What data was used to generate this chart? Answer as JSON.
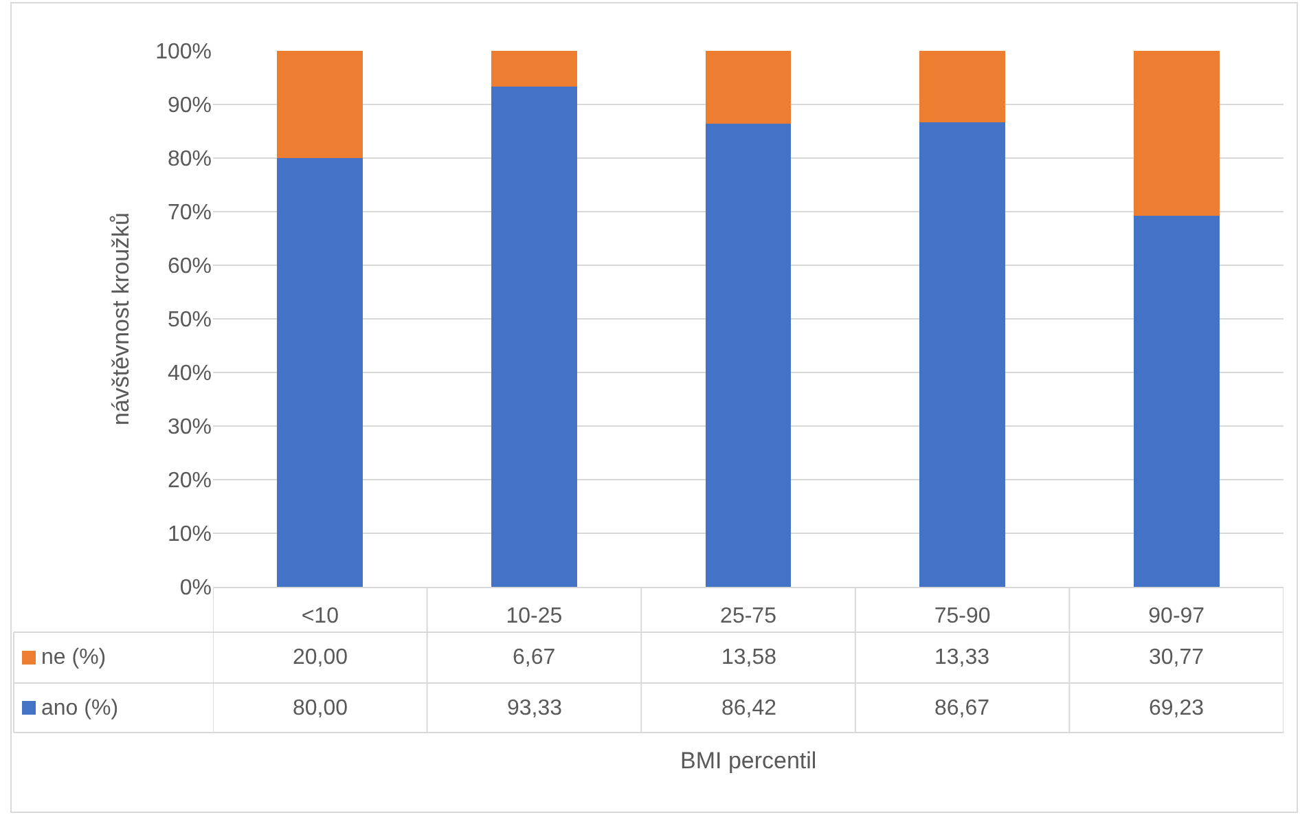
{
  "chart_data": {
    "type": "bar",
    "stacked": true,
    "annotations": [
      "BMI percentil"
    ],
    "ylabel": "návštěvnost kroužků",
    "categories": [
      "<10",
      "10-25",
      "25-75",
      "75-90",
      "90-97"
    ],
    "series": [
      {
        "name": "ano (%)",
        "color": "#4472c4",
        "values": [
          80.0,
          93.33,
          86.42,
          86.67,
          69.23
        ],
        "value_labels": [
          "80,00",
          "93,33",
          "86,42",
          "86,67",
          "69,23"
        ]
      },
      {
        "name": "ne (%)",
        "color": "#ed7d31",
        "values": [
          20.0,
          6.67,
          13.58,
          13.33,
          30.77
        ],
        "value_labels": [
          "20,00",
          "6,67",
          "13,58",
          "13,33",
          "30,77"
        ]
      }
    ],
    "ylim": [
      0,
      100
    ],
    "yticks": [
      {
        "value": 0,
        "label": "0%"
      },
      {
        "value": 10,
        "label": "10%"
      },
      {
        "value": 20,
        "label": "20%"
      },
      {
        "value": 30,
        "label": "30%"
      },
      {
        "value": 40,
        "label": "40%"
      },
      {
        "value": 50,
        "label": "50%"
      },
      {
        "value": 60,
        "label": "60%"
      },
      {
        "value": 70,
        "label": "70%"
      },
      {
        "value": 80,
        "label": "80%"
      },
      {
        "value": 90,
        "label": "90%"
      },
      {
        "value": 100,
        "label": "100%"
      }
    ],
    "grid": "y",
    "legend": "bottom"
  }
}
